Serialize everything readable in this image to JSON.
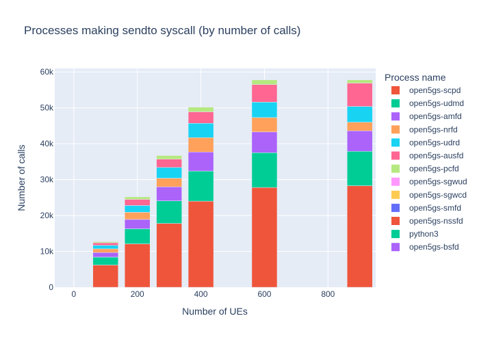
{
  "chart_data": {
    "type": "bar",
    "stacked": true,
    "title": "Processes making sendto syscall (by number of calls)",
    "xlabel": "Number of UEs",
    "ylabel": "Number of calls",
    "xlim": [
      -60,
      950
    ],
    "ylim": [
      0,
      61000
    ],
    "x_ticks": [
      0,
      200,
      400,
      600,
      800
    ],
    "x_tick_labels": [
      "0",
      "200",
      "400",
      "600",
      "800"
    ],
    "y_ticks": [
      0,
      10000,
      20000,
      30000,
      40000,
      50000,
      60000
    ],
    "y_tick_labels": [
      "0",
      "10k",
      "20k",
      "30k",
      "40k",
      "50k",
      "60k"
    ],
    "grid": true,
    "legend_title": "Process name",
    "legend_position": "right",
    "x": [
      100,
      200,
      300,
      400,
      600,
      900
    ],
    "series": [
      {
        "name": "open5gs-scpd",
        "color": "#EF553B",
        "values": [
          6200,
          12100,
          17800,
          24000,
          27800,
          28300
        ]
      },
      {
        "name": "open5gs-udmd",
        "color": "#00CC96",
        "values": [
          2200,
          4200,
          6300,
          8400,
          9700,
          9600
        ]
      },
      {
        "name": "open5gs-amfd",
        "color": "#AB63FA",
        "values": [
          1300,
          2600,
          3900,
          5300,
          5800,
          5700
        ]
      },
      {
        "name": "open5gs-nrfd",
        "color": "#FFA15A",
        "values": [
          1000,
          2000,
          2400,
          4000,
          4000,
          2400
        ]
      },
      {
        "name": "open5gs-udrd",
        "color": "#19D3F3",
        "values": [
          1000,
          1900,
          3000,
          4000,
          4300,
          4400
        ]
      },
      {
        "name": "open5gs-ausfd",
        "color": "#FF6692",
        "values": [
          700,
          1700,
          2300,
          3200,
          4900,
          6500
        ]
      },
      {
        "name": "open5gs-pcfd",
        "color": "#B6E880",
        "values": [
          300,
          700,
          1000,
          1300,
          1300,
          900
        ]
      },
      {
        "name": "open5gs-sgwud",
        "color": "#FF97FF",
        "values": [
          0,
          0,
          0,
          0,
          0,
          0
        ]
      },
      {
        "name": "open5gs-sgwcd",
        "color": "#FECB52",
        "values": [
          0,
          0,
          0,
          0,
          0,
          0
        ]
      },
      {
        "name": "open5gs-smfd",
        "color": "#636EFA",
        "values": [
          0,
          0,
          0,
          0,
          0,
          0
        ]
      },
      {
        "name": "open5gs-nssfd",
        "color": "#EF553B",
        "values": [
          0,
          0,
          0,
          0,
          0,
          0
        ]
      },
      {
        "name": "python3",
        "color": "#00CC96",
        "values": [
          0,
          0,
          0,
          0,
          0,
          0
        ]
      },
      {
        "name": "open5gs-bsfd",
        "color": "#AB63FA",
        "values": [
          0,
          0,
          0,
          0,
          0,
          0
        ]
      }
    ]
  }
}
